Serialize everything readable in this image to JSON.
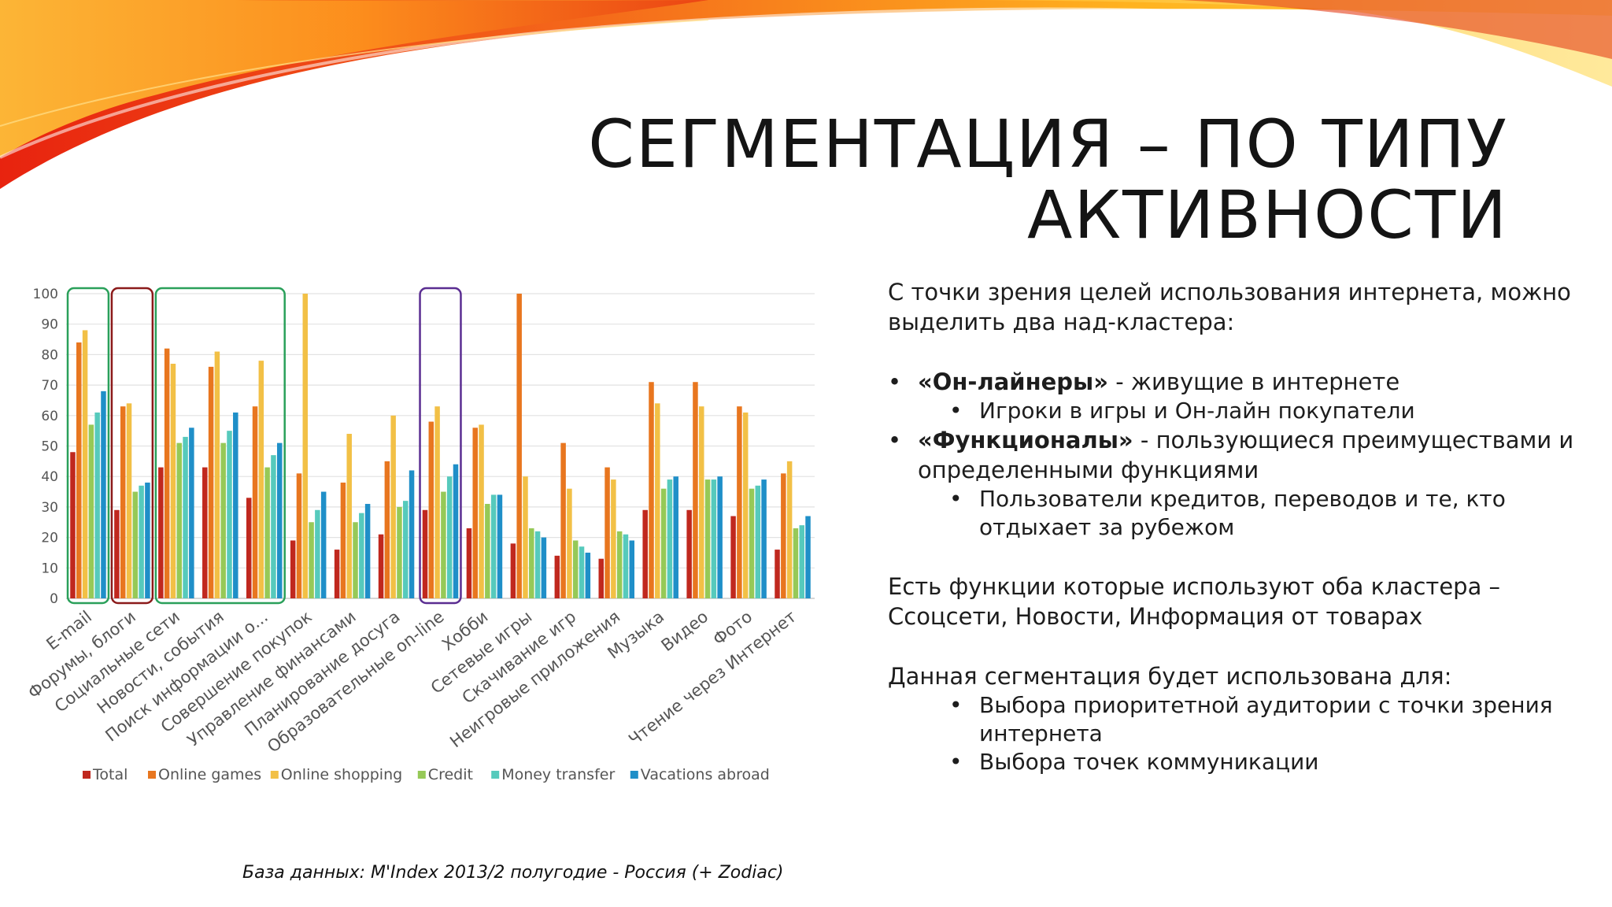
{
  "slide": {
    "title_line1": "СЕГМЕНТАЦИЯ – ПО ТИПУ",
    "title_line2": "АКТИВНОСТИ",
    "source": "База данных: M'Index 2013/2 полугодие - Россия (+ Zodiac)"
  },
  "text": {
    "intro": "С точки зрения целей использования интернета, можно выделить два  над-кластера:",
    "b1_bold": "«Он-лайнеры»",
    "b1_rest": " - живущие в интернете",
    "b1_sub": "Игроки в игры и Он-лайн покупатели",
    "b2_bold": "«Функционалы»",
    "b2_rest": " - пользующиеся преимуществами  и определенными функциями",
    "b2_sub": "Пользователи кредитов, переводов и те, кто отдыхает за рубежом",
    "p2": "Есть функции которые используют оба кластера – Ссоцсети, Новости, Информация от товарах",
    "p3": "Данная сегментация будет использована для:",
    "p3_sub1": "Выбора приоритетной аудитории с точки зрения интернета",
    "p3_sub2": "Выбора точек коммуникации"
  },
  "chart_data": {
    "type": "bar",
    "categories": [
      "E-mail",
      "Форумы, блоги",
      "Социальные сети",
      "Новости, события",
      "Поиск информации о...",
      "Совершение покупок",
      "Управление финансами",
      "Планирование досуга",
      "Образовательные on-line",
      "Хобби",
      "Сетевые игры",
      "Скачивание игр",
      "Неигровые приложения",
      "Музыка",
      "Видео",
      "Фото",
      "Чтение через Интернет"
    ],
    "series": [
      {
        "name": "Total",
        "color": "#c0281e",
        "values": [
          48,
          29,
          43,
          43,
          33,
          19,
          16,
          21,
          29,
          23,
          18,
          14,
          13,
          29,
          29,
          27,
          16
        ]
      },
      {
        "name": "Online games",
        "color": "#e8761f",
        "values": [
          84,
          63,
          82,
          76,
          63,
          41,
          38,
          45,
          58,
          56,
          100,
          51,
          43,
          71,
          71,
          63,
          41
        ]
      },
      {
        "name": "Online shopping",
        "color": "#f2c046",
        "values": [
          88,
          64,
          77,
          81,
          78,
          100,
          54,
          60,
          63,
          57,
          40,
          36,
          39,
          64,
          63,
          61,
          45
        ]
      },
      {
        "name": "Credit",
        "color": "#96c957",
        "values": [
          57,
          35,
          51,
          51,
          43,
          25,
          25,
          30,
          35,
          31,
          23,
          19,
          22,
          36,
          39,
          36,
          23
        ]
      },
      {
        "name": "Money transfer",
        "color": "#56cabc",
        "values": [
          61,
          37,
          53,
          55,
          47,
          29,
          28,
          32,
          40,
          34,
          22,
          17,
          21,
          39,
          39,
          37,
          24
        ]
      },
      {
        "name": "Vacations abroad",
        "color": "#1f8fc8",
        "values": [
          68,
          38,
          56,
          61,
          51,
          35,
          31,
          42,
          44,
          34,
          20,
          15,
          19,
          40,
          40,
          39,
          27
        ]
      }
    ],
    "ylim": [
      0,
      100
    ],
    "yticks": [
      0,
      10,
      20,
      30,
      40,
      50,
      60,
      70,
      80,
      90,
      100
    ],
    "grid": true,
    "legend": "bottom",
    "highlight_boxes": [
      {
        "from": 0,
        "to": 0,
        "color": "#2aa05a"
      },
      {
        "from": 1,
        "to": 1,
        "color": "#8b1a1a"
      },
      {
        "from": 2,
        "to": 4,
        "color": "#2aa05a"
      },
      {
        "from": 8,
        "to": 8,
        "color": "#5a2d91"
      }
    ]
  }
}
